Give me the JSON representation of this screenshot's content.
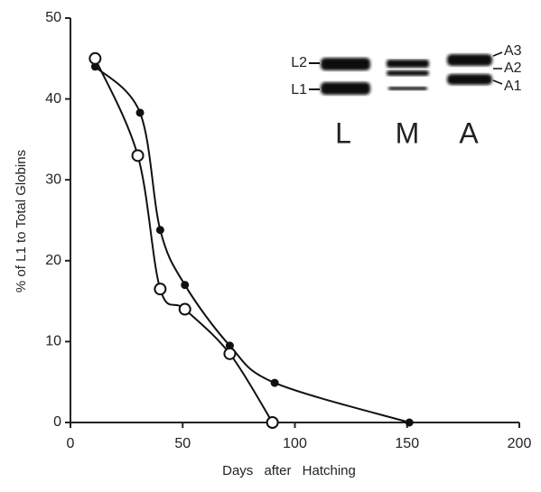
{
  "chart_data": {
    "type": "line",
    "xlabel": "Days after Hatching",
    "ylabel": "% of L1 to Total Globins",
    "xlim": [
      0,
      200
    ],
    "xticks": [
      0,
      50,
      100,
      150,
      200
    ],
    "ylim": [
      0,
      50
    ],
    "yticks": [
      0,
      10,
      20,
      30,
      40,
      50
    ],
    "series": [
      {
        "color": "#111111",
        "marker": "filled",
        "x": [
          11,
          31,
          40,
          51,
          71,
          91,
          151
        ],
        "values": [
          44,
          38.3,
          23.8,
          17,
          9.5,
          4.9,
          0
        ]
      },
      {
        "color": "#111111",
        "marker": "open",
        "x": [
          11,
          30,
          40,
          51,
          71,
          90
        ],
        "values": [
          45,
          33,
          16.5,
          14,
          8.5,
          0
        ]
      }
    ]
  },
  "gel": {
    "left_band_labels": [
      "L2",
      "L1"
    ],
    "right_band_labels": [
      "A3",
      "A2",
      "A1"
    ],
    "lane_labels": [
      "L",
      "M",
      "A"
    ]
  }
}
